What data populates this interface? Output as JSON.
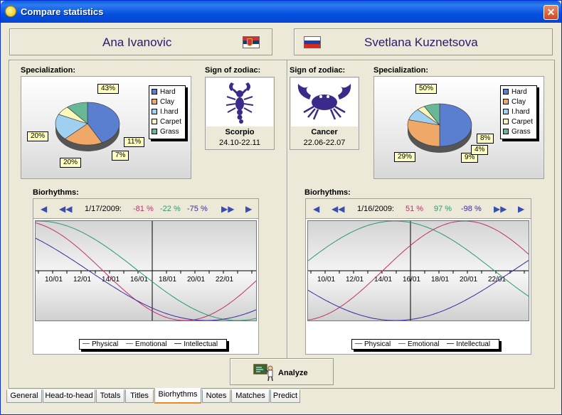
{
  "window": {
    "title": "Compare statistics",
    "close_label": "✕"
  },
  "players": [
    {
      "name": "Ana Ivanovic",
      "flag": "serbia-flag-icon"
    },
    {
      "name": "Svetlana Kuznetsova",
      "flag": "russia-flag-icon"
    }
  ],
  "labels": {
    "specialization": "Specialization:",
    "zodiac": "Sign of zodiac:",
    "biorhythms": "Biorhythms:"
  },
  "colors": {
    "hard": "#5b7fd0",
    "clay": "#f0a868",
    "ihard": "#9fd0f0",
    "carpet": "#fff8b8",
    "grass": "#68b898",
    "physical": "#c0306c",
    "emotional": "#2a9a6a",
    "intellectual": "#3a2aa0"
  },
  "legend": [
    "Hard",
    "Clay",
    "I.hard",
    "Carpet",
    "Grass"
  ],
  "left": {
    "chart_data": {
      "type": "pie",
      "categories": [
        "Hard",
        "Clay",
        "I.hard",
        "Carpet",
        "Grass"
      ],
      "values": [
        43,
        20,
        20,
        7,
        11
      ],
      "labels": [
        "43%",
        "20%",
        "20%",
        "7%",
        "11%"
      ]
    },
    "zodiac": {
      "name": "Scorpio",
      "dates": "24.10-22.11",
      "icon": "scorpio-icon"
    },
    "bio": {
      "date": "1/17/2009:",
      "physical": "-81 %",
      "emotional": "-22 %",
      "intellectual": "-75 %",
      "ticks": [
        "10/01",
        "12/01",
        "14/01",
        "16/01",
        "18/01",
        "20/01",
        "22/01"
      ]
    }
  },
  "right": {
    "chart_data": {
      "type": "pie",
      "categories": [
        "Hard",
        "Clay",
        "I.hard",
        "Carpet",
        "Grass"
      ],
      "values": [
        50,
        29,
        9,
        4,
        8
      ],
      "labels": [
        "50%",
        "29%",
        "9%",
        "4%",
        "8%"
      ]
    },
    "zodiac": {
      "name": "Cancer",
      "dates": "22.06-22.07",
      "icon": "cancer-icon"
    },
    "bio": {
      "date": "1/16/2009:",
      "physical": "51 %",
      "emotional": "97 %",
      "intellectual": "-98 %",
      "ticks": [
        "10/01",
        "12/01",
        "14/01",
        "16/01",
        "18/01",
        "20/01",
        "22/01"
      ]
    }
  },
  "bio_legend": {
    "physical": "Physical",
    "emotional": "Emotional",
    "intellectual": "Intellectual"
  },
  "analyze_label": "Analyze",
  "tabs": [
    "General",
    "Head-to-head",
    "Totals",
    "Titles",
    "Biorhythms",
    "Notes",
    "Matches",
    "Predict"
  ],
  "active_tab": "Biorhythms"
}
